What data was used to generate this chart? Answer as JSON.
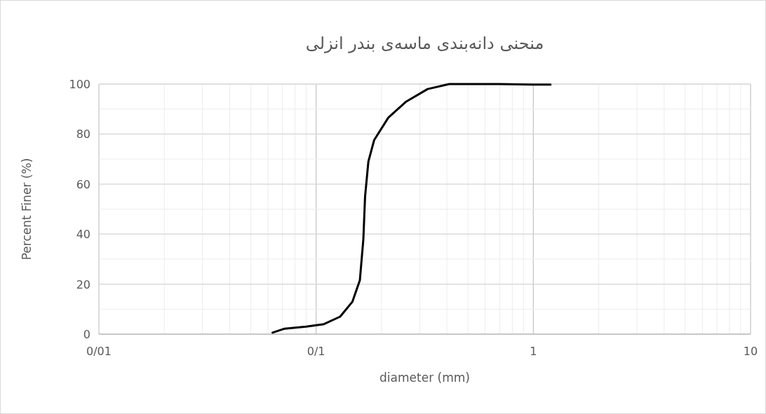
{
  "chart_data": {
    "type": "line",
    "title": "منحنی دانه‌بندی ماسه‌ی بندر انزلی",
    "xlabel": "diameter (mm)",
    "ylabel": "Percent Finer (%)",
    "log": "x",
    "xlim": [
      0.01,
      10
    ],
    "xticks": [
      {
        "value": 0.01,
        "label": "0/01"
      },
      {
        "value": 0.1,
        "label": "0/1"
      },
      1,
      10
    ],
    "ylim": [
      0,
      100
    ],
    "yticks": [
      0,
      20,
      40,
      60,
      80,
      100
    ],
    "grid": true,
    "series": [
      {
        "color": "#000000",
        "line_style": "solid",
        "x": [
          0.063,
          0.0716,
          0.09,
          0.1087,
          0.129,
          0.147,
          0.159,
          0.165,
          0.168,
          0.174,
          0.185,
          0.215,
          0.26,
          0.326,
          0.41,
          0.697,
          1.0,
          1.2
        ],
        "values": [
          0.6,
          2.2,
          3,
          4,
          7,
          13,
          21.6,
          38,
          55,
          69,
          77.6,
          86.6,
          93,
          98,
          100,
          100,
          99.8,
          99.8
        ]
      }
    ]
  }
}
